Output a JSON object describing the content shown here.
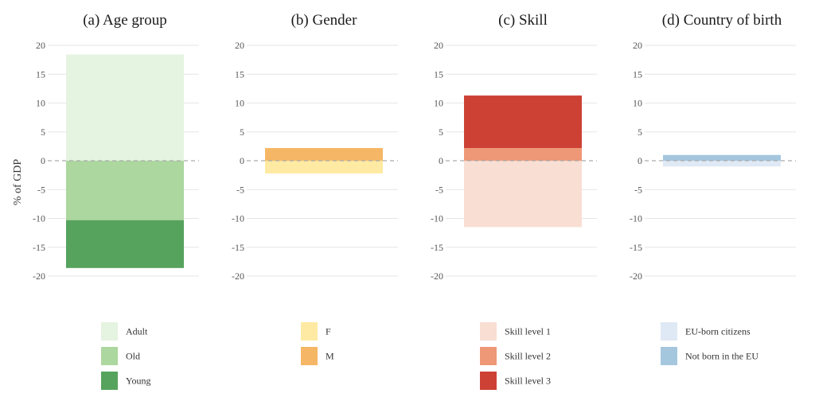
{
  "y_axis_label": "% of GDP",
  "chart_data": [
    {
      "type": "bar",
      "stacked": true,
      "title": "(a) Age group",
      "ylabel": "% of GDP",
      "ylim": [
        -20,
        20
      ],
      "yticks": [
        20,
        15,
        10,
        5,
        0,
        -5,
        -10,
        -15,
        -20
      ],
      "grid": true,
      "zero_line": "dashed",
      "series": [
        {
          "name": "Adult",
          "color": "#e5f3e1",
          "value": 18.4
        },
        {
          "name": "Old",
          "color": "#acd79f",
          "value": -10.3
        },
        {
          "name": "Young",
          "color": "#56a35d",
          "value": -8.3
        }
      ]
    },
    {
      "type": "bar",
      "stacked": true,
      "title": "(b) Gender",
      "ylim": [
        -20,
        20
      ],
      "yticks": [
        20,
        15,
        10,
        5,
        0,
        -5,
        -10,
        -15,
        -20
      ],
      "grid": true,
      "zero_line": "dashed",
      "series": [
        {
          "name": "F",
          "color": "#feeaa2",
          "value": -2.2
        },
        {
          "name": "M",
          "color": "#f5b765",
          "value": 2.2
        }
      ]
    },
    {
      "type": "bar",
      "stacked": true,
      "title": "(c) Skill",
      "ylim": [
        -20,
        20
      ],
      "yticks": [
        20,
        15,
        10,
        5,
        0,
        -5,
        -10,
        -15,
        -20
      ],
      "grid": true,
      "zero_line": "dashed",
      "series": [
        {
          "name": "Skill level 1",
          "color": "#f9ded3",
          "value": -11.5
        },
        {
          "name": "Skill level 2",
          "color": "#ef9877",
          "value": 2.2
        },
        {
          "name": "Skill level 3",
          "color": "#cd4135",
          "value": 9.1
        }
      ]
    },
    {
      "type": "bar",
      "stacked": true,
      "title": "(d) Country of birth",
      "ylim": [
        -20,
        20
      ],
      "yticks": [
        20,
        15,
        10,
        5,
        0,
        -5,
        -10,
        -15,
        -20
      ],
      "grid": true,
      "zero_line": "dashed",
      "series": [
        {
          "name": "EU-born citizens",
          "color": "#dfe9f5",
          "value": -1.0
        },
        {
          "name": "Not born in the EU",
          "color": "#a4c7de",
          "value": 1.0
        }
      ]
    }
  ]
}
